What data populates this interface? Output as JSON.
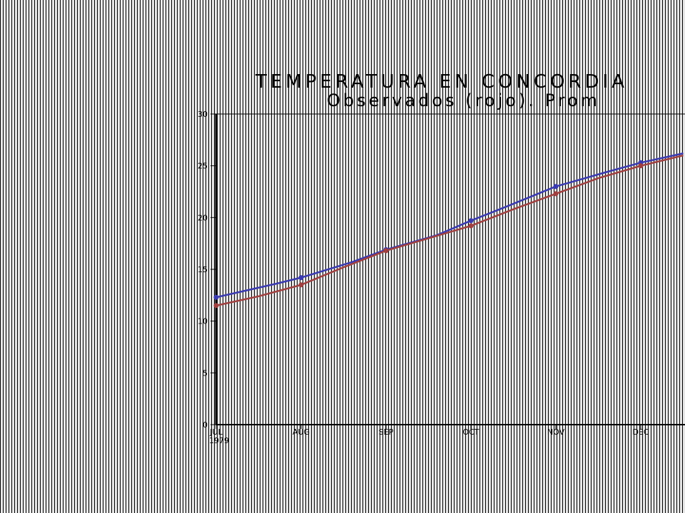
{
  "chart_data": {
    "type": "line",
    "title": "TEMPERATURA EN CONCORDIA",
    "subtitle": "Observados (rojo). Prom",
    "x_ticks": [
      "JUL",
      "AUG",
      "SEP",
      "OCT",
      "NOV",
      "DEC"
    ],
    "x_year_label": "1979",
    "y_ticks": [
      "0",
      "5",
      "10",
      "15",
      "20",
      "25",
      "30"
    ],
    "ylim": [
      0,
      30
    ],
    "xlim": [
      0,
      5.5
    ],
    "grid": false,
    "series": [
      {
        "color": "#3a3ab0",
        "x": [
          0,
          0.7,
          1,
          1.6,
          2,
          2.6,
          3,
          3.4,
          4,
          4.6,
          5,
          5.5
        ],
        "y": [
          12.3,
          13.6,
          14.2,
          15.7,
          16.9,
          18.3,
          19.7,
          21.0,
          23.0,
          24.4,
          25.3,
          26.2
        ]
      },
      {
        "color": "#a04040",
        "x": [
          0,
          0.5,
          1,
          1.5,
          2,
          2.5,
          3,
          3.5,
          4,
          4.5,
          5,
          5.5
        ],
        "y": [
          11.5,
          12.4,
          13.5,
          15.2,
          16.8,
          18.0,
          19.2,
          20.8,
          22.3,
          23.8,
          25.0,
          26.0
        ]
      }
    ]
  }
}
